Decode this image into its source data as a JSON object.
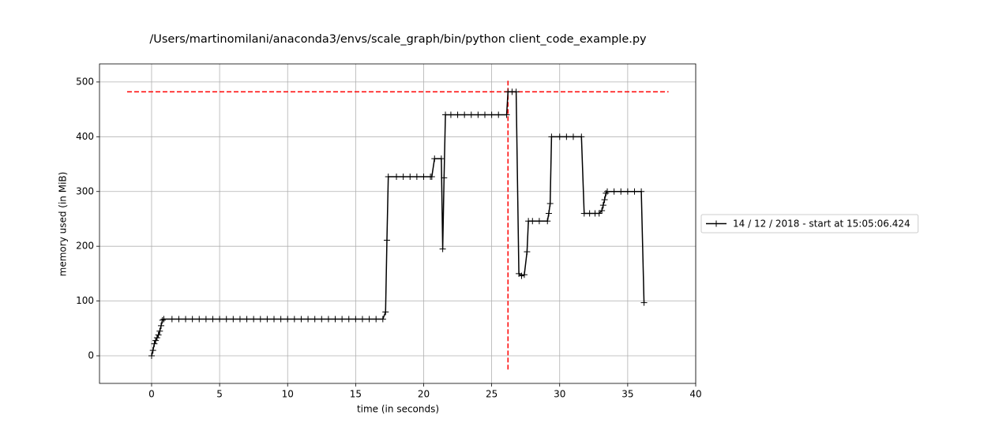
{
  "chart_data": {
    "type": "line",
    "title": "/Users/martinomilani/anaconda3/envs/scale_graph/bin/python client_code_example.py",
    "xlabel": "time (in seconds)",
    "ylabel": "memory used (in MiB)",
    "xlim": [
      -3.83,
      40
    ],
    "ylim": [
      -50.4,
      533
    ],
    "xticks": [
      0,
      5,
      10,
      15,
      20,
      25,
      30,
      35,
      40
    ],
    "yticks": [
      0,
      100,
      200,
      300,
      400,
      500
    ],
    "grid": true,
    "legend": "outside right",
    "x": [
      0,
      0.1,
      0.2,
      0.3,
      0.4,
      0.5,
      0.6,
      0.7,
      0.8,
      0.9,
      1.5,
      2,
      2.5,
      3,
      3.5,
      4,
      4.5,
      5,
      5.5,
      6,
      6.5,
      7,
      7.5,
      8,
      8.5,
      9,
      9.5,
      10,
      10.5,
      11,
      11.5,
      12,
      12.5,
      13,
      13.5,
      14,
      14.5,
      15,
      15.5,
      16,
      16.5,
      17,
      17.2,
      17.3,
      17.4,
      18,
      18.5,
      19,
      19.5,
      20,
      20.5,
      20.6,
      20.8,
      21.3,
      21.4,
      21.5,
      21.6,
      22,
      22.5,
      23,
      23.5,
      24,
      24.5,
      25,
      25.5,
      26.1,
      26.2,
      26.5,
      26.8,
      27,
      27.2,
      27.4,
      27.6,
      27.7,
      28,
      28.5,
      29.1,
      29.2,
      29.3,
      29.4,
      30,
      30.5,
      31,
      31.6,
      31.8,
      32.2,
      32.6,
      32.9,
      33.1,
      33.2,
      33.3,
      33.4,
      33.5,
      34,
      34.5,
      35,
      35.5,
      36,
      36.2
    ],
    "series": [
      {
        "name": "14 / 12 / 2018 - start at 15:05:06.424",
        "color": "#000000",
        "values": [
          0,
          10,
          22,
          28,
          33,
          38,
          45,
          55,
          65,
          67,
          67,
          67,
          67,
          67,
          67,
          67,
          67,
          67,
          67,
          67,
          67,
          67,
          67,
          67,
          67,
          67,
          67,
          67,
          67,
          67,
          67,
          67,
          67,
          67,
          67,
          67,
          67,
          67,
          67,
          67,
          67,
          67,
          80,
          211,
          327,
          327,
          327,
          327,
          327,
          327,
          327,
          327,
          360,
          360,
          195,
          325,
          440,
          440,
          440,
          440,
          440,
          440,
          440,
          440,
          440,
          440,
          482,
          482,
          482,
          150,
          146,
          148,
          190,
          246,
          246,
          246,
          246,
          260,
          278,
          400,
          400,
          400,
          400,
          400,
          260,
          260,
          260,
          260,
          265,
          275,
          285,
          297,
          300,
          300,
          300,
          300,
          300,
          300,
          97
        ]
      }
    ],
    "hlines": [
      {
        "y": 482,
        "xmin": -1.8,
        "xmax": 38,
        "color": "#ff0000"
      }
    ],
    "vlines": [
      {
        "x": 26.2,
        "ymin": -25,
        "ymax": 505,
        "color": "#ff0000"
      }
    ]
  }
}
